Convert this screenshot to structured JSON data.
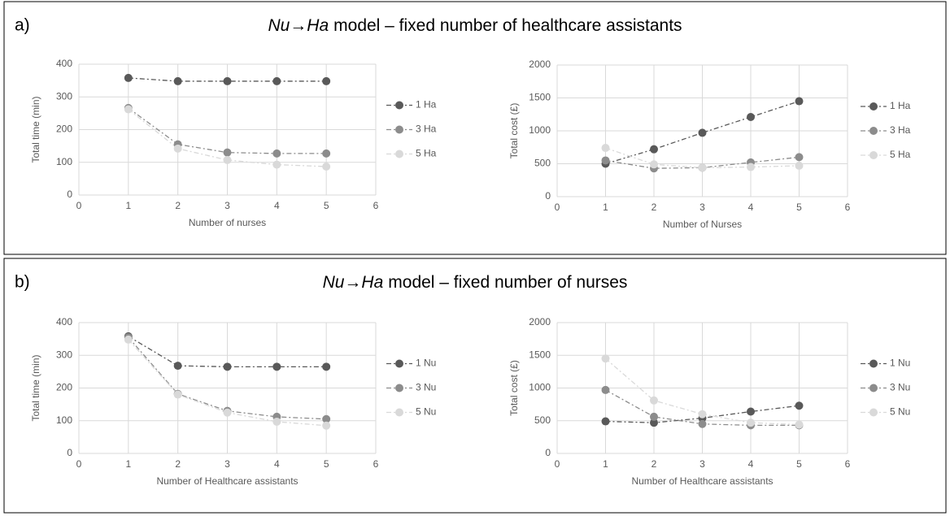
{
  "panels": [
    {
      "label": "a)",
      "title_italic": "Nu→Ha",
      "title": "model – fixed number of healthcare assistants"
    },
    {
      "label": "b)",
      "title_italic": "Nu→Ha",
      "title": "model – fixed number of nurses"
    }
  ],
  "chart_data": [
    {
      "type": "line",
      "line_style": "dashdot",
      "grid": true,
      "legend": "right",
      "x_label": "Number of nurses",
      "y_label": "Total time (min)",
      "x": [
        1,
        2,
        3,
        4,
        5
      ],
      "xlim": [
        0,
        6
      ],
      "xticks": [
        0,
        1,
        2,
        3,
        4,
        5,
        6
      ],
      "ylim": [
        0,
        400
      ],
      "yticks": [
        0,
        100,
        200,
        300,
        400
      ],
      "series": [
        {
          "name": "1 Ha",
          "color": "#595959",
          "values": [
            358,
            348,
            348,
            348,
            348
          ]
        },
        {
          "name": "3 Ha",
          "color": "#8c8c8c",
          "values": [
            266,
            155,
            130,
            127,
            127
          ]
        },
        {
          "name": "5 Ha",
          "color": "#d9d9d9",
          "values": [
            262,
            142,
            107,
            93,
            87
          ]
        }
      ]
    },
    {
      "type": "line",
      "line_style": "dashdot",
      "grid": true,
      "legend": "right",
      "x_label": "Number of Nurses",
      "y_label": "Total cost (£)",
      "x": [
        1,
        2,
        3,
        4,
        5
      ],
      "xlim": [
        0,
        6
      ],
      "xticks": [
        0,
        1,
        2,
        3,
        4,
        5,
        6
      ],
      "ylim": [
        0,
        2000
      ],
      "yticks": [
        0,
        500,
        1000,
        1500,
        2000
      ],
      "series": [
        {
          "name": "1 Ha",
          "color": "#595959",
          "values": [
            500,
            720,
            970,
            1210,
            1450
          ]
        },
        {
          "name": "3 Ha",
          "color": "#8c8c8c",
          "values": [
            550,
            430,
            440,
            520,
            600
          ]
        },
        {
          "name": "5 Ha",
          "color": "#d9d9d9",
          "values": [
            740,
            490,
            440,
            450,
            470
          ]
        }
      ]
    },
    {
      "type": "line",
      "line_style": "dashdot",
      "grid": true,
      "legend": "right",
      "x_label": "Number of Healthcare assistants",
      "y_label": "Total time (min)",
      "x": [
        1,
        2,
        3,
        4,
        5
      ],
      "xlim": [
        0,
        6
      ],
      "xticks": [
        0,
        1,
        2,
        3,
        4,
        5,
        6
      ],
      "ylim": [
        0,
        400
      ],
      "yticks": [
        0,
        100,
        200,
        300,
        400
      ],
      "series": [
        {
          "name": "1 Nu",
          "color": "#595959",
          "values": [
            358,
            268,
            265,
            265,
            265
          ]
        },
        {
          "name": "3 Nu",
          "color": "#8c8c8c",
          "values": [
            355,
            182,
            130,
            112,
            105
          ]
        },
        {
          "name": "5 Nu",
          "color": "#d9d9d9",
          "values": [
            348,
            180,
            125,
            97,
            85
          ]
        }
      ]
    },
    {
      "type": "line",
      "line_style": "dashdot",
      "grid": true,
      "legend": "right",
      "x_label": "Number of Healthcare assistants",
      "y_label": "Total cost (£)",
      "x": [
        1,
        2,
        3,
        4,
        5
      ],
      "xlim": [
        0,
        6
      ],
      "xticks": [
        0,
        1,
        2,
        3,
        4,
        5,
        6
      ],
      "ylim": [
        0,
        2000
      ],
      "yticks": [
        0,
        500,
        1000,
        1500,
        2000
      ],
      "series": [
        {
          "name": "1 Nu",
          "color": "#595959",
          "values": [
            490,
            470,
            540,
            640,
            730
          ]
        },
        {
          "name": "3 Nu",
          "color": "#8c8c8c",
          "values": [
            970,
            560,
            450,
            430,
            430
          ]
        },
        {
          "name": "5 Nu",
          "color": "#d9d9d9",
          "values": [
            1450,
            810,
            600,
            470,
            440
          ]
        }
      ]
    }
  ]
}
